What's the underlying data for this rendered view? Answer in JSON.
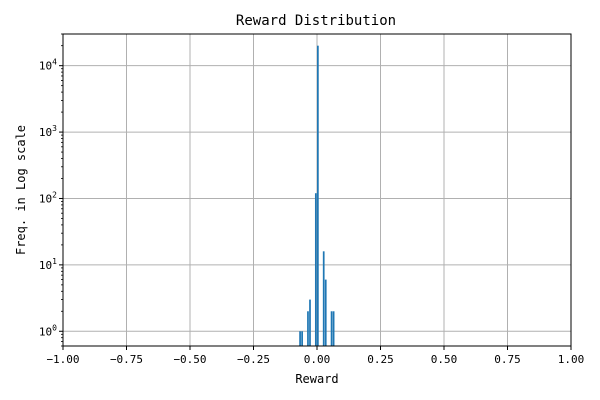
{
  "chart_data": {
    "type": "bar",
    "title": "Reward Distribution",
    "xlabel": "Reward",
    "ylabel": "Freq. in Log scale",
    "xlim": [
      -1.0,
      1.0
    ],
    "ylim": [
      0.6,
      30000
    ],
    "yscale": "log",
    "grid": true,
    "bar_color": "#1f77b4",
    "x_ticks": [
      -1.0,
      -0.75,
      -0.5,
      -0.25,
      0.0,
      0.25,
      0.5,
      0.75,
      1.0
    ],
    "x_tick_labels": [
      "−1.00",
      "−0.75",
      "−0.50",
      "−0.25",
      "0.00",
      "0.25",
      "0.50",
      "0.75",
      "1.00"
    ],
    "y_ticks": [
      1,
      10,
      100,
      1000,
      10000
    ],
    "y_tick_labels": [
      {
        "base": "10",
        "exp": "0"
      },
      {
        "base": "10",
        "exp": "1"
      },
      {
        "base": "10",
        "exp": "2"
      },
      {
        "base": "10",
        "exp": "3"
      },
      {
        "base": "10",
        "exp": "4"
      }
    ],
    "bin_width": 0.008,
    "bins": [
      {
        "x": -0.066,
        "value": 1
      },
      {
        "x": -0.058,
        "value": 1
      },
      {
        "x": -0.035,
        "value": 2
      },
      {
        "x": -0.027,
        "value": 3
      },
      {
        "x": -0.004,
        "value": 120
      },
      {
        "x": 0.004,
        "value": 20000
      },
      {
        "x": 0.027,
        "value": 16
      },
      {
        "x": 0.035,
        "value": 6
      },
      {
        "x": 0.058,
        "value": 2
      },
      {
        "x": 0.066,
        "value": 2
      }
    ]
  }
}
